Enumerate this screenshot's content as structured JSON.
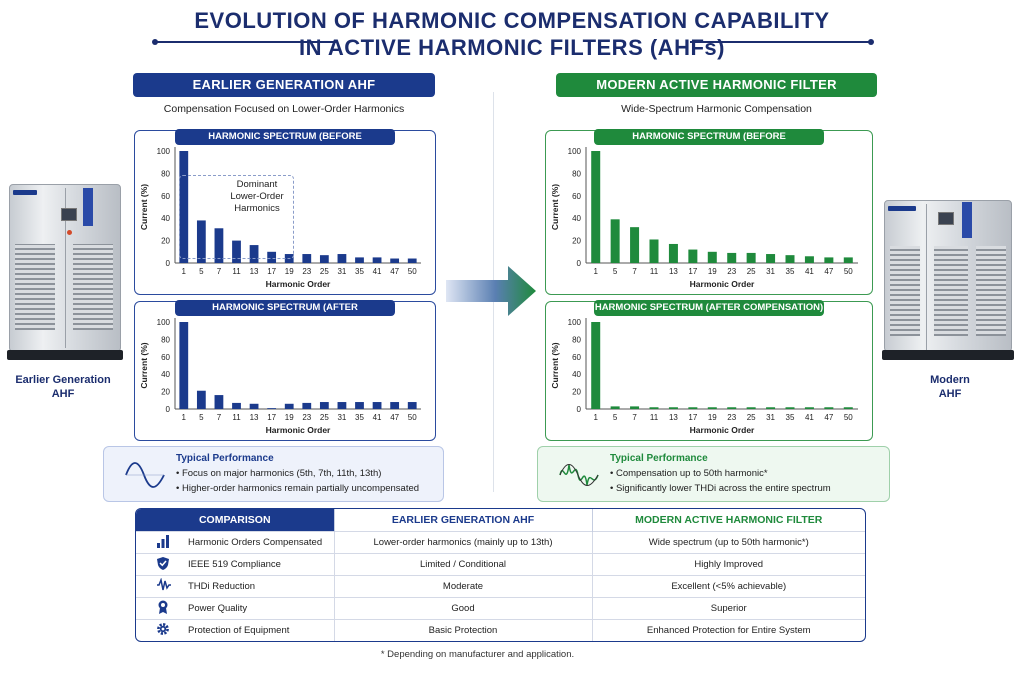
{
  "title": {
    "line1": "EVOLUTION OF HARMONIC COMPENSATION CAPABILITY",
    "line2": "IN ACTIVE HARMONIC FILTERS (AHFs)"
  },
  "colors": {
    "navy": "#1b3a8c",
    "green": "#1f8a3c"
  },
  "left": {
    "header": "EARLIER GENERATION AHF",
    "subtitle": "Compensation Focused on Lower-Order Harmonics",
    "chart_before_title": "HARMONIC SPECTRUM (BEFORE COMPENSATION)",
    "chart_after_title": "HARMONIC SPECTRUM (AFTER COMPENSATION)",
    "annotation": [
      "Dominant",
      "Lower-Order",
      "Harmonics"
    ],
    "perf_title": "Typical Performance",
    "perf_items": [
      "Focus on major harmonics (5th, 7th, 11th, 13th)",
      "Higher-order harmonics remain partially uncompensated"
    ],
    "cabinet_label": [
      "Earlier Generation",
      "AHF"
    ]
  },
  "right": {
    "header": "MODERN ACTIVE HARMONIC FILTER",
    "subtitle": "Wide-Spectrum Harmonic Compensation",
    "chart_before_title": "HARMONIC SPECTRUM (BEFORE COMPENSATION)",
    "chart_after_title": "HARMONIC SPECTRUM (AFTER COMPENSATION)",
    "perf_title": "Typical Performance",
    "perf_items": [
      "Compensation up to 50th harmonic*",
      "Significantly lower THDi across the entire spectrum"
    ],
    "cabinet_label": [
      "Modern",
      "AHF"
    ]
  },
  "chart_data": [
    {
      "type": "bar",
      "id": "left_before",
      "title": "HARMONIC SPECTRUM (BEFORE COMPENSATION)",
      "xlabel": "Harmonic Order",
      "ylabel": "Current (%)",
      "ylim": [
        0,
        100
      ],
      "yticks": [
        0,
        20,
        40,
        60,
        80,
        100
      ],
      "categories": [
        "1",
        "5",
        "7",
        "11",
        "13",
        "17",
        "19",
        "23",
        "25",
        "31",
        "35",
        "41",
        "47",
        "50"
      ],
      "values": [
        100,
        38,
        31,
        20,
        16,
        10,
        8,
        8,
        7,
        8,
        5,
        5,
        4,
        4
      ],
      "color": "#1b3a8c"
    },
    {
      "type": "bar",
      "id": "left_after",
      "title": "HARMONIC SPECTRUM (AFTER COMPENSATION)",
      "xlabel": "Harmonic Order",
      "ylabel": "Current (%)",
      "ylim": [
        0,
        100
      ],
      "yticks": [
        0,
        20,
        40,
        60,
        80,
        100
      ],
      "categories": [
        "1",
        "5",
        "7",
        "11",
        "13",
        "17",
        "19",
        "23",
        "25",
        "31",
        "35",
        "41",
        "47",
        "50"
      ],
      "values": [
        100,
        21,
        16,
        7,
        6,
        1,
        6,
        7,
        8,
        8,
        8,
        8,
        8,
        8
      ],
      "color": "#1b3a8c"
    },
    {
      "type": "bar",
      "id": "right_before",
      "title": "HARMONIC SPECTRUM (BEFORE COMPENSATION)",
      "xlabel": "Harmonic Order",
      "ylabel": "Current (%)",
      "ylim": [
        0,
        100
      ],
      "yticks": [
        0,
        20,
        40,
        60,
        80,
        100
      ],
      "categories": [
        "1",
        "5",
        "7",
        "11",
        "13",
        "17",
        "19",
        "23",
        "25",
        "31",
        "35",
        "41",
        "47",
        "50"
      ],
      "values": [
        100,
        39,
        32,
        21,
        17,
        12,
        10,
        9,
        9,
        8,
        7,
        6,
        5,
        5
      ],
      "color": "#1f8a3c"
    },
    {
      "type": "bar",
      "id": "right_after",
      "title": "HARMONIC SPECTRUM (AFTER COMPENSATION)",
      "xlabel": "Harmonic Order",
      "ylabel": "Current (%)",
      "ylim": [
        0,
        100
      ],
      "yticks": [
        0,
        20,
        40,
        60,
        80,
        100
      ],
      "categories": [
        "1",
        "5",
        "7",
        "11",
        "13",
        "17",
        "19",
        "23",
        "25",
        "31",
        "35",
        "41",
        "47",
        "50"
      ],
      "values": [
        100,
        3,
        3,
        2,
        2,
        2,
        2,
        2,
        2,
        2,
        2,
        2,
        2,
        2
      ],
      "color": "#1f8a3c"
    }
  ],
  "comparison": {
    "headers": [
      "COMPARISON",
      "EARLIER GENERATION AHF",
      "MODERN ACTIVE HARMONIC FILTER"
    ],
    "rows": [
      {
        "icon": "bar-chart-icon",
        "label": "Harmonic Orders Compensated",
        "earlier": "Lower-order harmonics (mainly up to 13th)",
        "modern": "Wide spectrum (up to 50th harmonic*)"
      },
      {
        "icon": "shield-check-icon",
        "label": "IEEE 519 Compliance",
        "earlier": "Limited / Conditional",
        "modern": "Highly Improved"
      },
      {
        "icon": "waveform-icon",
        "label": "THDi Reduction",
        "earlier": "Moderate",
        "modern": "Excellent (<5% achievable)"
      },
      {
        "icon": "award-ribbon-icon",
        "label": "Power Quality",
        "earlier": "Good",
        "modern": "Superior"
      },
      {
        "icon": "gear-icon",
        "label": "Protection of Equipment",
        "earlier": "Basic Protection",
        "modern": "Enhanced Protection for Entire System"
      }
    ]
  },
  "footnote": "* Depending on manufacturer and application."
}
